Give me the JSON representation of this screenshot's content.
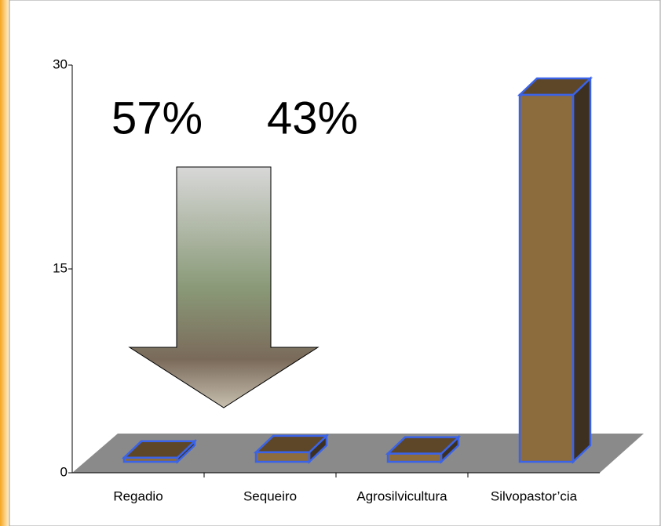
{
  "chart_data": {
    "type": "bar3d",
    "categories": [
      "Regadio",
      "Sequeiro",
      "Agrosilvicultura",
      "Silvopastor’cia"
    ],
    "values": [
      0.3,
      0.7,
      0.6,
      27
    ],
    "color": "#8c6b3c",
    "ylim": [
      0,
      30
    ],
    "yticks": [
      0,
      15,
      30
    ],
    "annotations": [
      "57%",
      "43%"
    ]
  }
}
